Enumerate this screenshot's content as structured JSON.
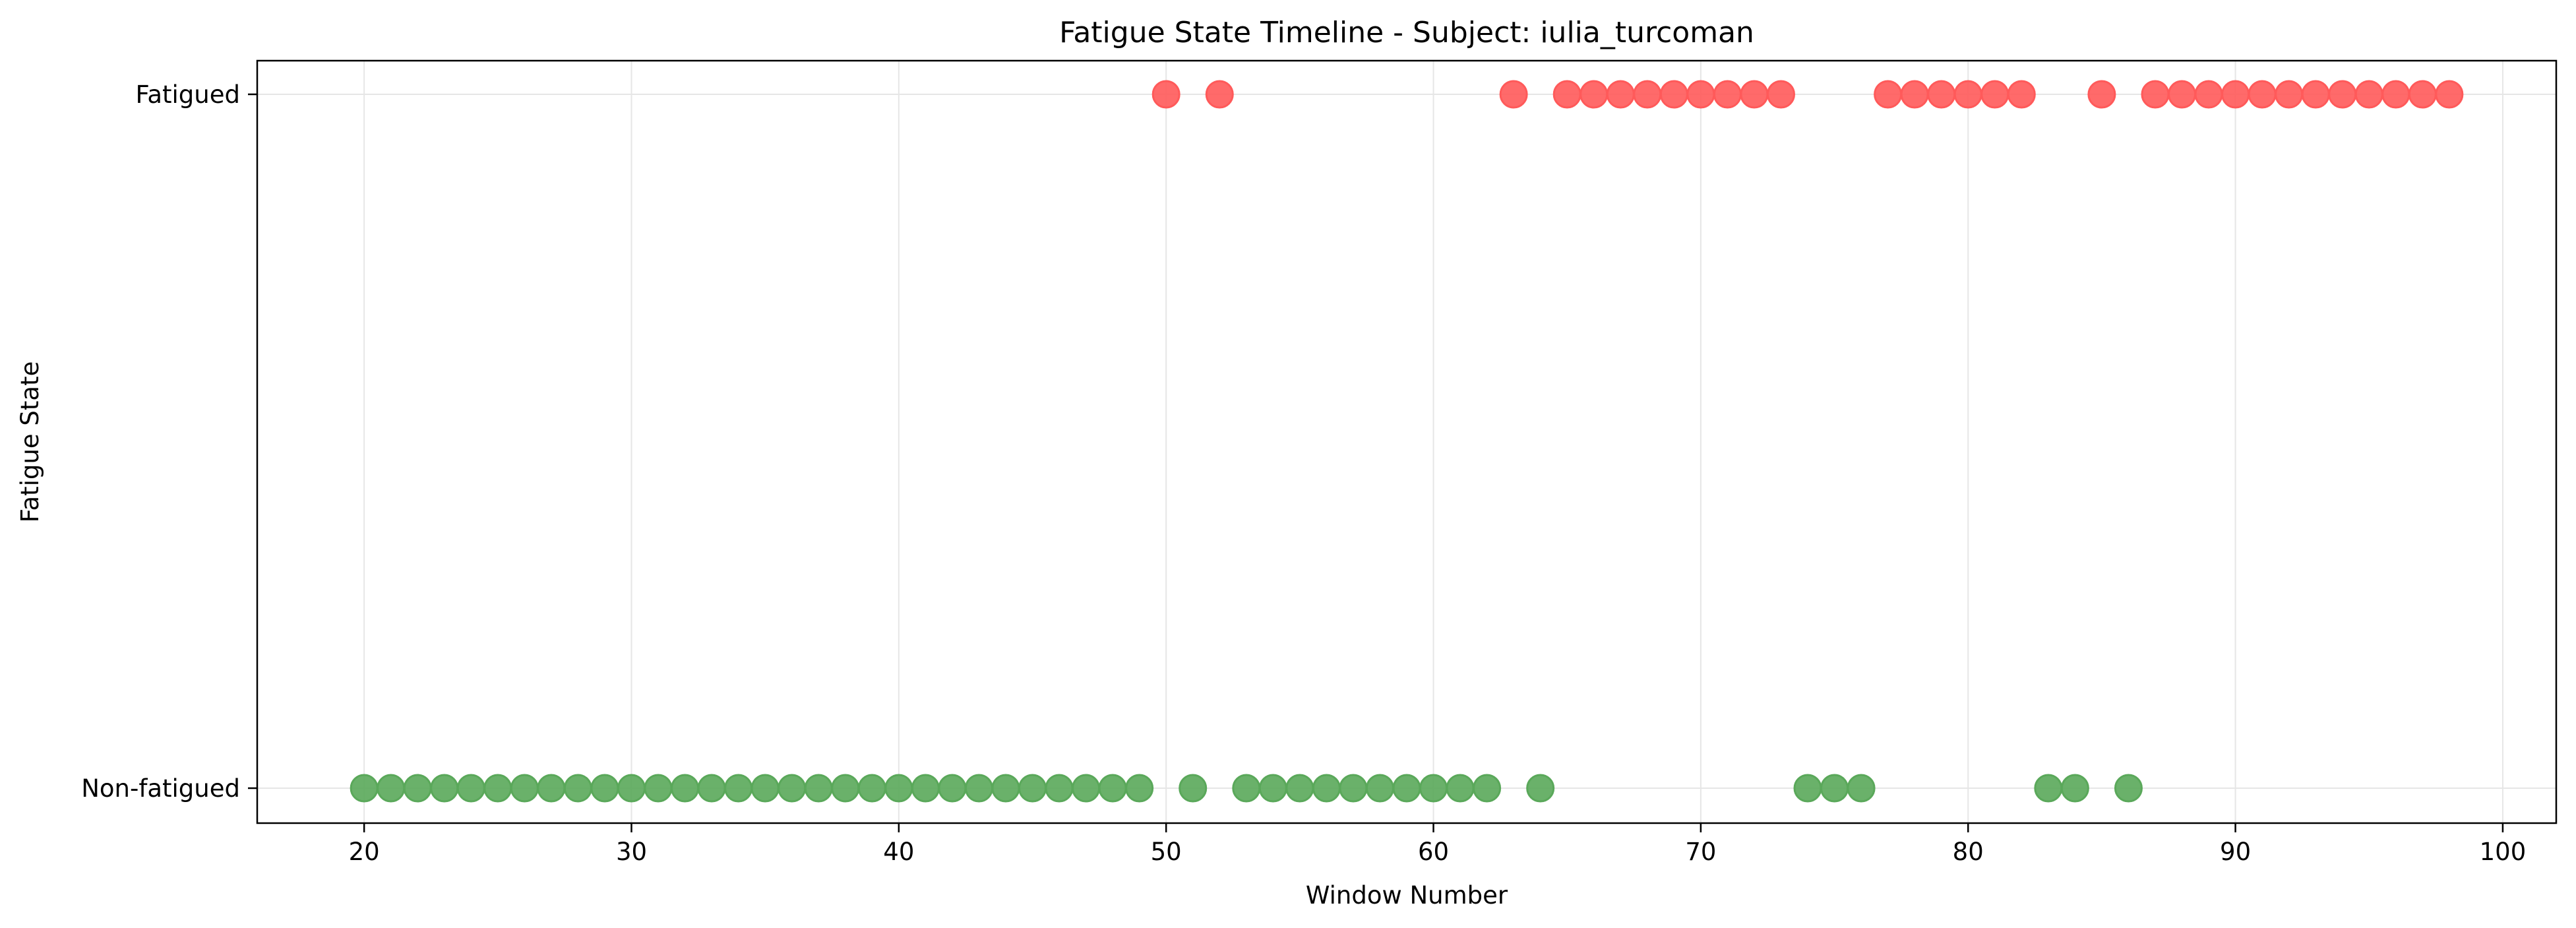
{
  "chart_data": {
    "type": "scatter",
    "title": "Fatigue State Timeline - Subject: iulia_turcoman",
    "xlabel": "Window Number",
    "ylabel": "Fatigue State",
    "xlim": [
      16,
      102
    ],
    "xticks": [
      20,
      30,
      40,
      50,
      60,
      70,
      80,
      90,
      100
    ],
    "y_categories": [
      "Non-fatigued",
      "Fatigued"
    ],
    "grid": true,
    "legend": "none",
    "colors": {
      "Fatigued": "#ff5a5a",
      "Non-fatigued": "#5aa85a"
    },
    "series": [
      {
        "state": "Fatigued",
        "x": [
          50,
          52,
          63,
          65,
          66,
          67,
          68,
          69,
          70,
          71,
          72,
          73,
          77,
          78,
          79,
          80,
          81,
          82,
          85,
          87,
          88,
          89,
          90,
          91,
          92,
          93,
          94,
          95,
          96,
          97,
          98
        ]
      },
      {
        "state": "Non-fatigued",
        "x": [
          20,
          21,
          22,
          23,
          24,
          25,
          26,
          27,
          28,
          29,
          30,
          31,
          32,
          33,
          34,
          35,
          36,
          37,
          38,
          39,
          40,
          41,
          42,
          43,
          44,
          45,
          46,
          47,
          48,
          49,
          51,
          53,
          54,
          55,
          56,
          57,
          58,
          59,
          60,
          61,
          62,
          64,
          74,
          75,
          76,
          83,
          84,
          86
        ]
      }
    ]
  }
}
